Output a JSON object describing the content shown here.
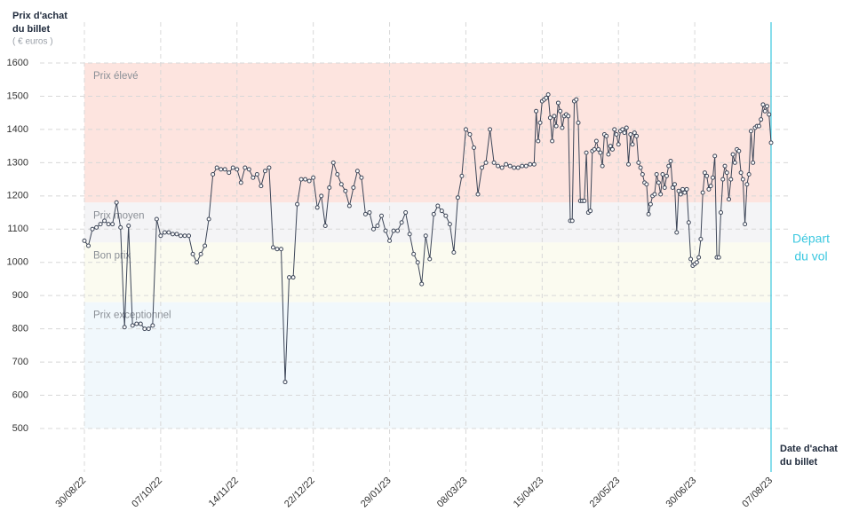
{
  "chart_data": {
    "type": "line",
    "y_title": [
      "Prix d'achat",
      "du billet"
    ],
    "y_unit": "( € euros )",
    "x_title": [
      "Date d'achat",
      "du billet"
    ],
    "annotation": {
      "x": "2023-08-07",
      "lines": [
        "Départ",
        "du vol"
      ],
      "color": "#3cc8e0"
    },
    "ylim": [
      500,
      1600
    ],
    "yticks": [
      500,
      600,
      700,
      800,
      900,
      1000,
      1100,
      1200,
      1300,
      1400,
      1500,
      1600
    ],
    "xlim": [
      "2022-08-30",
      "2023-08-07"
    ],
    "xticks": [
      {
        "value": "2022-08-30",
        "label": "30/08/22"
      },
      {
        "value": "2022-10-07",
        "label": "07/10/22"
      },
      {
        "value": "2022-11-14",
        "label": "14/11/22"
      },
      {
        "value": "2022-12-22",
        "label": "22/12/22"
      },
      {
        "value": "2023-01-29",
        "label": "29/01/23"
      },
      {
        "value": "2023-03-08",
        "label": "08/03/23"
      },
      {
        "value": "2023-04-15",
        "label": "15/04/23"
      },
      {
        "value": "2023-05-23",
        "label": "23/05/23"
      },
      {
        "value": "2023-06-30",
        "label": "30/06/23"
      },
      {
        "value": "2023-08-07",
        "label": "07/08/23"
      }
    ],
    "grid": true,
    "bands": [
      {
        "label": "Prix élevé",
        "from": 1180,
        "to": 1600,
        "color": "#fde4df"
      },
      {
        "label": "Prix moyen",
        "from": 1060,
        "to": 1180,
        "color": "#f4f4f6"
      },
      {
        "label": "Bon prix",
        "from": 880,
        "to": 1060,
        "color": "#fbfbf0"
      },
      {
        "label": "Prix exceptionnel",
        "from": 500,
        "to": 880,
        "color": "#f1f8fc"
      }
    ],
    "series": [
      {
        "name": "Prix",
        "color": "#3d4658",
        "x": [
          "2022-08-30",
          "2022-09-01",
          "2022-09-03",
          "2022-09-05",
          "2022-09-07",
          "2022-09-09",
          "2022-09-11",
          "2022-09-13",
          "2022-09-15",
          "2022-09-17",
          "2022-09-19",
          "2022-09-21",
          "2022-09-23",
          "2022-09-25",
          "2022-09-27",
          "2022-09-29",
          "2022-10-01",
          "2022-10-03",
          "2022-10-05",
          "2022-10-07",
          "2022-10-09",
          "2022-10-11",
          "2022-10-13",
          "2022-10-15",
          "2022-10-17",
          "2022-10-19",
          "2022-10-21",
          "2022-10-23",
          "2022-10-25",
          "2022-10-27",
          "2022-10-29",
          "2022-10-31",
          "2022-11-02",
          "2022-11-04",
          "2022-11-06",
          "2022-11-08",
          "2022-11-10",
          "2022-11-12",
          "2022-11-14",
          "2022-11-16",
          "2022-11-18",
          "2022-11-20",
          "2022-11-22",
          "2022-11-24",
          "2022-11-26",
          "2022-11-28",
          "2022-11-30",
          "2022-12-02",
          "2022-12-04",
          "2022-12-06",
          "2022-12-08",
          "2022-12-10",
          "2022-12-12",
          "2022-12-14",
          "2022-12-16",
          "2022-12-18",
          "2022-12-20",
          "2022-12-22",
          "2022-12-24",
          "2022-12-26",
          "2022-12-28",
          "2022-12-30",
          "2023-01-01",
          "2023-01-03",
          "2023-01-05",
          "2023-01-07",
          "2023-01-09",
          "2023-01-11",
          "2023-01-13",
          "2023-01-15",
          "2023-01-17",
          "2023-01-19",
          "2023-01-21",
          "2023-01-23",
          "2023-01-25",
          "2023-01-27",
          "2023-01-29",
          "2023-01-31",
          "2023-02-02",
          "2023-02-04",
          "2023-02-06",
          "2023-02-08",
          "2023-02-10",
          "2023-02-12",
          "2023-02-14",
          "2023-02-16",
          "2023-02-18",
          "2023-02-20",
          "2023-02-22",
          "2023-02-24",
          "2023-02-26",
          "2023-02-28",
          "2023-03-02",
          "2023-03-04",
          "2023-03-06",
          "2023-03-08",
          "2023-03-10",
          "2023-03-12",
          "2023-03-14",
          "2023-03-16",
          "2023-03-18",
          "2023-03-20",
          "2023-03-22",
          "2023-03-24",
          "2023-03-26",
          "2023-03-28",
          "2023-03-30",
          "2023-04-01",
          "2023-04-03",
          "2023-04-05",
          "2023-04-07",
          "2023-04-09",
          "2023-04-11",
          "2023-04-12",
          "2023-04-13",
          "2023-04-14",
          "2023-04-15",
          "2023-04-16",
          "2023-04-17",
          "2023-04-18",
          "2023-04-19",
          "2023-04-20",
          "2023-04-21",
          "2023-04-22",
          "2023-04-23",
          "2023-04-24",
          "2023-04-25",
          "2023-04-26",
          "2023-04-27",
          "2023-04-28",
          "2023-04-29",
          "2023-04-30",
          "2023-05-01",
          "2023-05-02",
          "2023-05-03",
          "2023-05-04",
          "2023-05-05",
          "2023-05-06",
          "2023-05-07",
          "2023-05-08",
          "2023-05-09",
          "2023-05-10",
          "2023-05-11",
          "2023-05-12",
          "2023-05-13",
          "2023-05-14",
          "2023-05-15",
          "2023-05-16",
          "2023-05-17",
          "2023-05-18",
          "2023-05-19",
          "2023-05-20",
          "2023-05-21",
          "2023-05-22",
          "2023-05-23",
          "2023-05-24",
          "2023-05-25",
          "2023-05-26",
          "2023-05-27",
          "2023-05-28",
          "2023-05-29",
          "2023-05-30",
          "2023-05-31",
          "2023-06-01",
          "2023-06-02",
          "2023-06-03",
          "2023-06-04",
          "2023-06-05",
          "2023-06-06",
          "2023-06-07",
          "2023-06-08",
          "2023-06-09",
          "2023-06-10",
          "2023-06-11",
          "2023-06-12",
          "2023-06-13",
          "2023-06-14",
          "2023-06-15",
          "2023-06-16",
          "2023-06-17",
          "2023-06-18",
          "2023-06-19",
          "2023-06-20",
          "2023-06-21",
          "2023-06-22",
          "2023-06-23",
          "2023-06-24",
          "2023-06-25",
          "2023-06-26",
          "2023-06-27",
          "2023-06-28",
          "2023-06-29",
          "2023-06-30",
          "2023-07-01",
          "2023-07-02",
          "2023-07-03",
          "2023-07-04",
          "2023-07-05",
          "2023-07-06",
          "2023-07-07",
          "2023-07-08",
          "2023-07-09",
          "2023-07-10",
          "2023-07-11",
          "2023-07-12",
          "2023-07-13",
          "2023-07-14",
          "2023-07-15",
          "2023-07-16",
          "2023-07-17",
          "2023-07-18",
          "2023-07-19",
          "2023-07-20",
          "2023-07-21",
          "2023-07-22",
          "2023-07-23",
          "2023-07-24",
          "2023-07-25",
          "2023-07-26",
          "2023-07-27",
          "2023-07-28",
          "2023-07-29",
          "2023-07-30",
          "2023-07-31",
          "2023-08-01",
          "2023-08-02",
          "2023-08-03",
          "2023-08-04",
          "2023-08-05",
          "2023-08-06",
          "2023-08-07"
        ],
        "values": [
          1065,
          1050,
          1100,
          1105,
          1115,
          1125,
          1115,
          1115,
          1180,
          1105,
          805,
          1110,
          810,
          815,
          815,
          800,
          800,
          810,
          1130,
          1080,
          1090,
          1090,
          1085,
          1085,
          1080,
          1080,
          1080,
          1025,
          1000,
          1025,
          1050,
          1130,
          1265,
          1285,
          1280,
          1280,
          1270,
          1285,
          1280,
          1240,
          1285,
          1280,
          1255,
          1265,
          1230,
          1275,
          1285,
          1045,
          1040,
          1040,
          640,
          955,
          955,
          1175,
          1250,
          1250,
          1245,
          1255,
          1165,
          1200,
          1110,
          1225,
          1300,
          1265,
          1235,
          1215,
          1170,
          1225,
          1275,
          1255,
          1145,
          1150,
          1100,
          1110,
          1140,
          1095,
          1065,
          1095,
          1095,
          1120,
          1150,
          1085,
          1025,
          1000,
          935,
          1080,
          1010,
          1145,
          1170,
          1155,
          1140,
          1115,
          1030,
          1195,
          1260,
          1400,
          1385,
          1345,
          1205,
          1285,
          1300,
          1400,
          1300,
          1290,
          1285,
          1295,
          1290,
          1285,
          1285,
          1290,
          1290,
          1295,
          1295,
          1455,
          1365,
          1420,
          1485,
          1490,
          1495,
          1505,
          1435,
          1365,
          1440,
          1410,
          1480,
          1455,
          1405,
          1440,
          1445,
          1440,
          1125,
          1125,
          1485,
          1490,
          1420,
          1185,
          1185,
          1185,
          1330,
          1150,
          1155,
          1335,
          1340,
          1365,
          1340,
          1330,
          1290,
          1385,
          1380,
          1325,
          1350,
          1340,
          1400,
          1385,
          1355,
          1395,
          1400,
          1390,
          1405,
          1295,
          1385,
          1355,
          1390,
          1380,
          1300,
          1285,
          1265,
          1240,
          1235,
          1145,
          1175,
          1200,
          1205,
          1265,
          1240,
          1205,
          1265,
          1225,
          1260,
          1290,
          1305,
          1225,
          1235,
          1090,
          1215,
          1205,
          1220,
          1210,
          1220,
          1120,
          1010,
          990,
          995,
          1000,
          1015,
          1070,
          1210,
          1270,
          1260,
          1220,
          1230,
          1255,
          1320,
          1015,
          1015,
          1150,
          1250,
          1290,
          1270,
          1190,
          1250,
          1325,
          1300,
          1340,
          1335,
          1270,
          1250,
          1115,
          1235,
          1265,
          1395,
          1300,
          1405,
          1410,
          1410,
          1430,
          1475,
          1455,
          1470,
          1445,
          1360
        ]
      }
    ]
  }
}
